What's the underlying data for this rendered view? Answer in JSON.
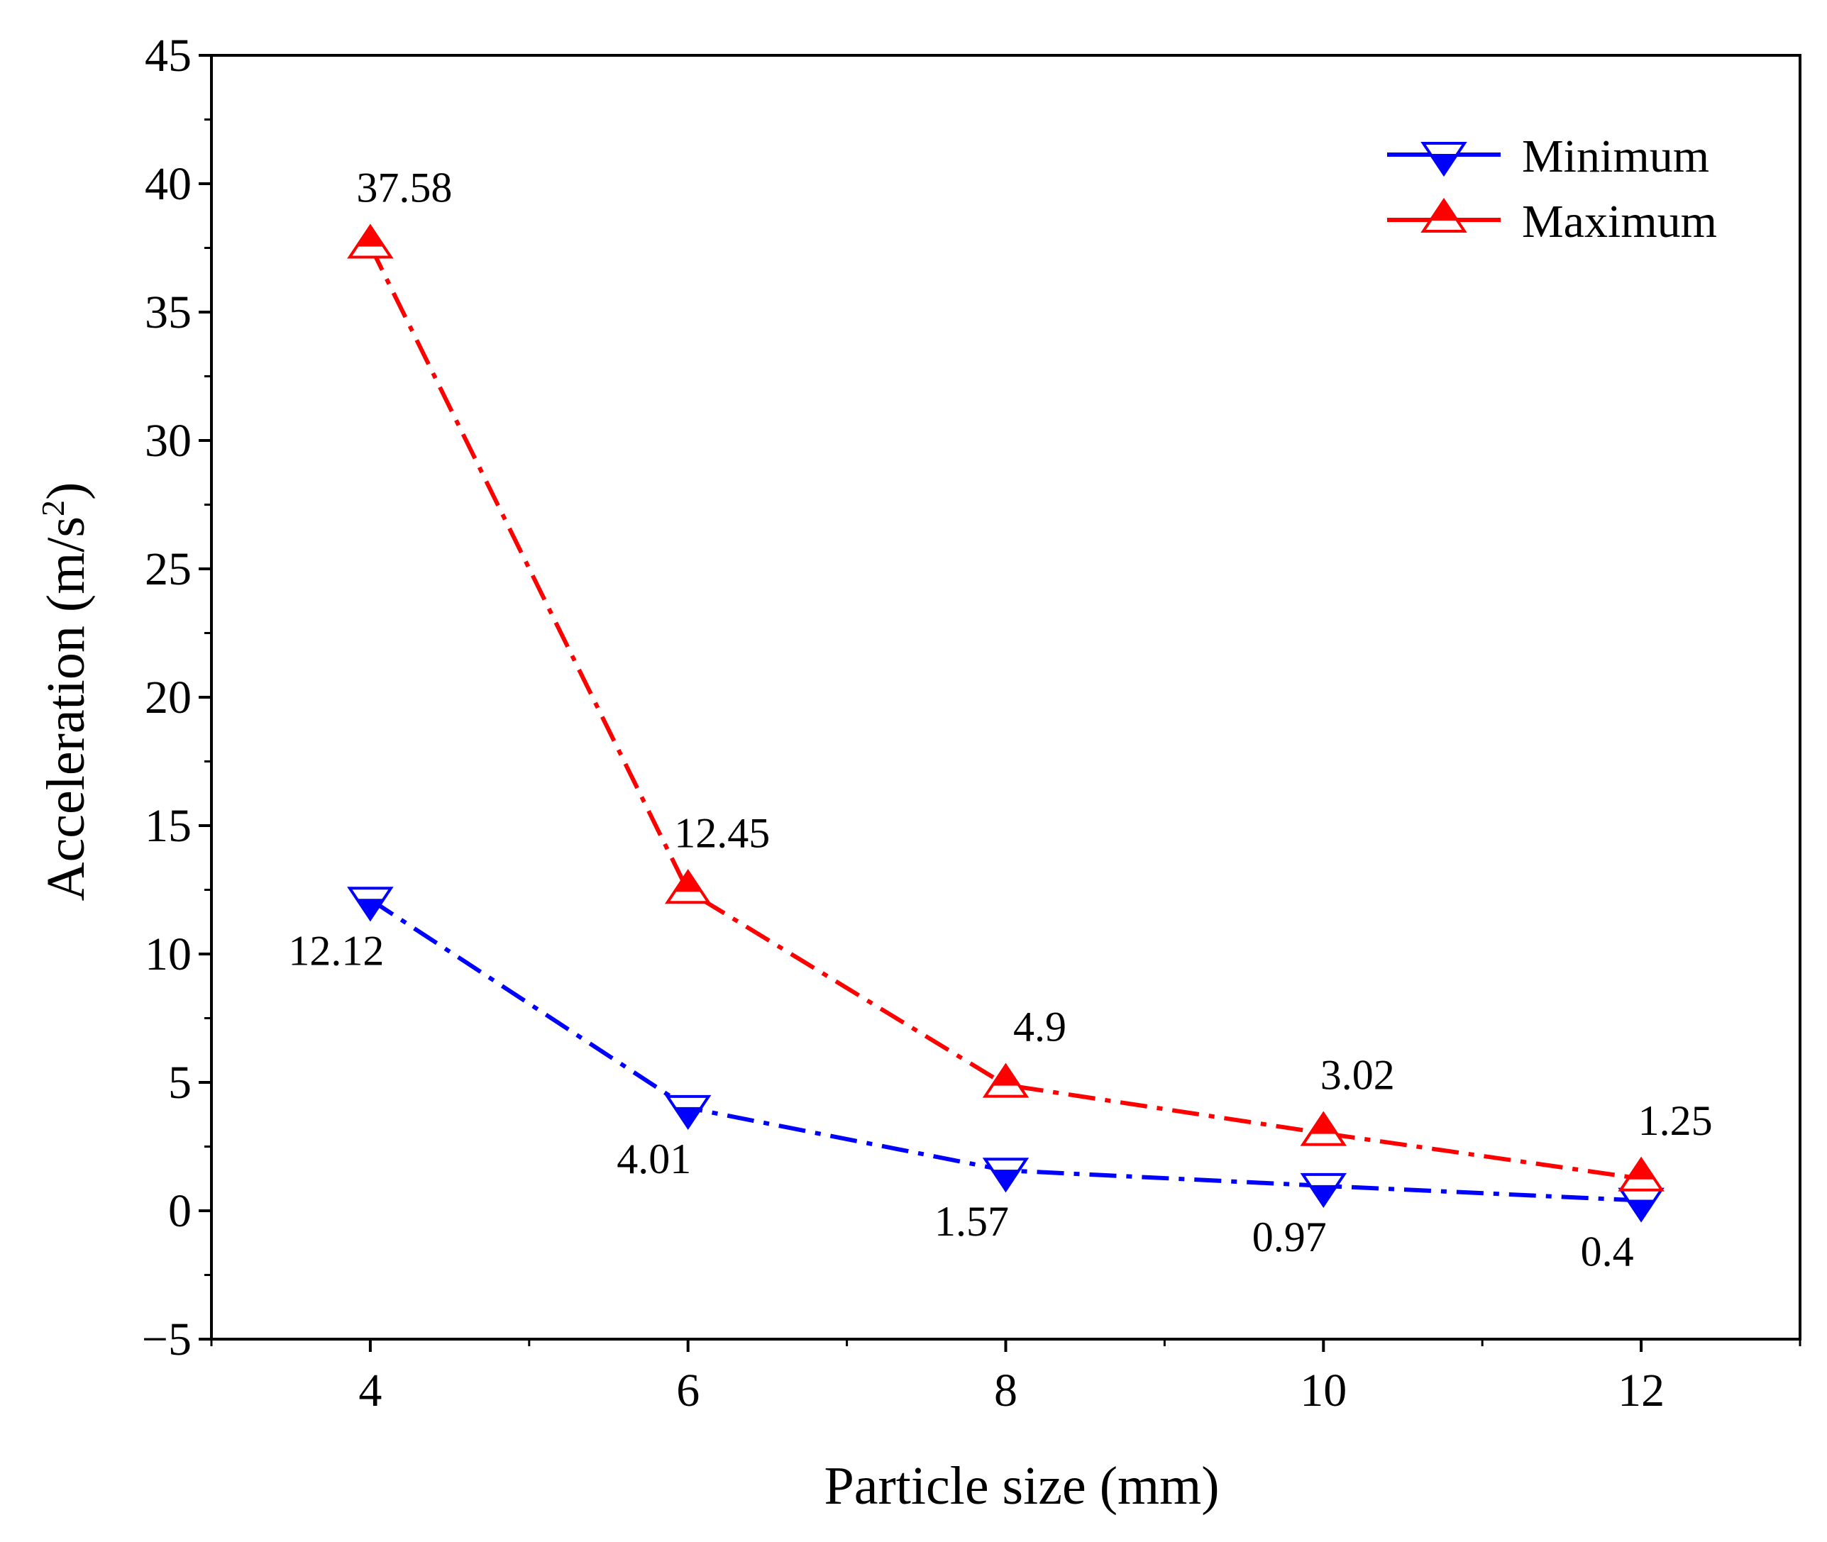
{
  "chart_data": {
    "type": "line",
    "title": "",
    "xlabel": "Particle size (mm)",
    "ylabel": "Acceleration (m/s",
    "ylabel_superscript": "2",
    "ylabel_suffix": ")",
    "x": [
      4,
      6,
      8,
      10,
      12
    ],
    "xlim": [
      3,
      13
    ],
    "ylim": [
      -5,
      45
    ],
    "xticks": [
      4,
      6,
      8,
      10,
      12
    ],
    "yticks": [
      -5,
      0,
      5,
      10,
      15,
      20,
      25,
      30,
      35,
      40,
      45
    ],
    "xtick_labels": [
      "4",
      "6",
      "8",
      "10",
      "12"
    ],
    "ytick_labels": [
      "−5",
      "0",
      "5",
      "10",
      "15",
      "20",
      "25",
      "30",
      "35",
      "40",
      "45"
    ],
    "grid": false,
    "legend_position": "top-right",
    "series": [
      {
        "name": "Minimum",
        "values": [
          12.12,
          4.01,
          1.57,
          0.97,
          0.4
        ],
        "labels": [
          "12.12",
          "4.01",
          "1.57",
          "0.97",
          "0.4"
        ],
        "color": "#0000ff",
        "marker": "down-triangle-half-filled",
        "line_style": "dash-dot"
      },
      {
        "name": "Maximum",
        "values": [
          37.58,
          12.45,
          4.9,
          3.02,
          1.25
        ],
        "labels": [
          "37.58",
          "12.45",
          "4.9",
          "3.02",
          "1.25"
        ],
        "color": "#ff0000",
        "marker": "up-triangle-half-filled",
        "line_style": "dash-dot"
      }
    ]
  }
}
